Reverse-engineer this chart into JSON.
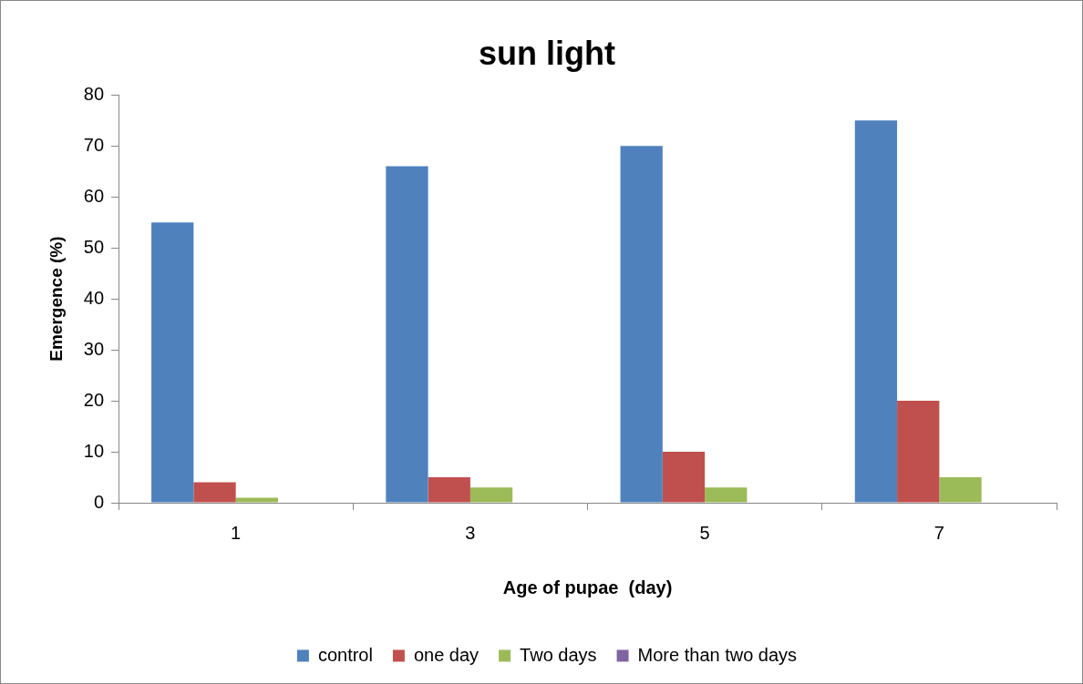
{
  "chart_data": {
    "type": "bar",
    "title": "sun light",
    "xlabel": "Age of pupae  (day)",
    "ylabel": "Emergence (%)",
    "categories": [
      "1",
      "3",
      "5",
      "7"
    ],
    "series": [
      {
        "name": "control",
        "color": "#4f81bd",
        "values": [
          55,
          66,
          70,
          75
        ]
      },
      {
        "name": "one day",
        "color": "#c0504d",
        "values": [
          4,
          5,
          10,
          20
        ]
      },
      {
        "name": "Two days",
        "color": "#9bbb59",
        "values": [
          1,
          3,
          3,
          5
        ]
      },
      {
        "name": "More than two days",
        "color": "#8064a2",
        "values": [
          0,
          0,
          0,
          0
        ]
      }
    ],
    "ylim": [
      0,
      80
    ],
    "yticks": [
      0,
      10,
      20,
      30,
      40,
      50,
      60,
      70,
      80
    ],
    "grid": false,
    "legend": "bottom"
  }
}
